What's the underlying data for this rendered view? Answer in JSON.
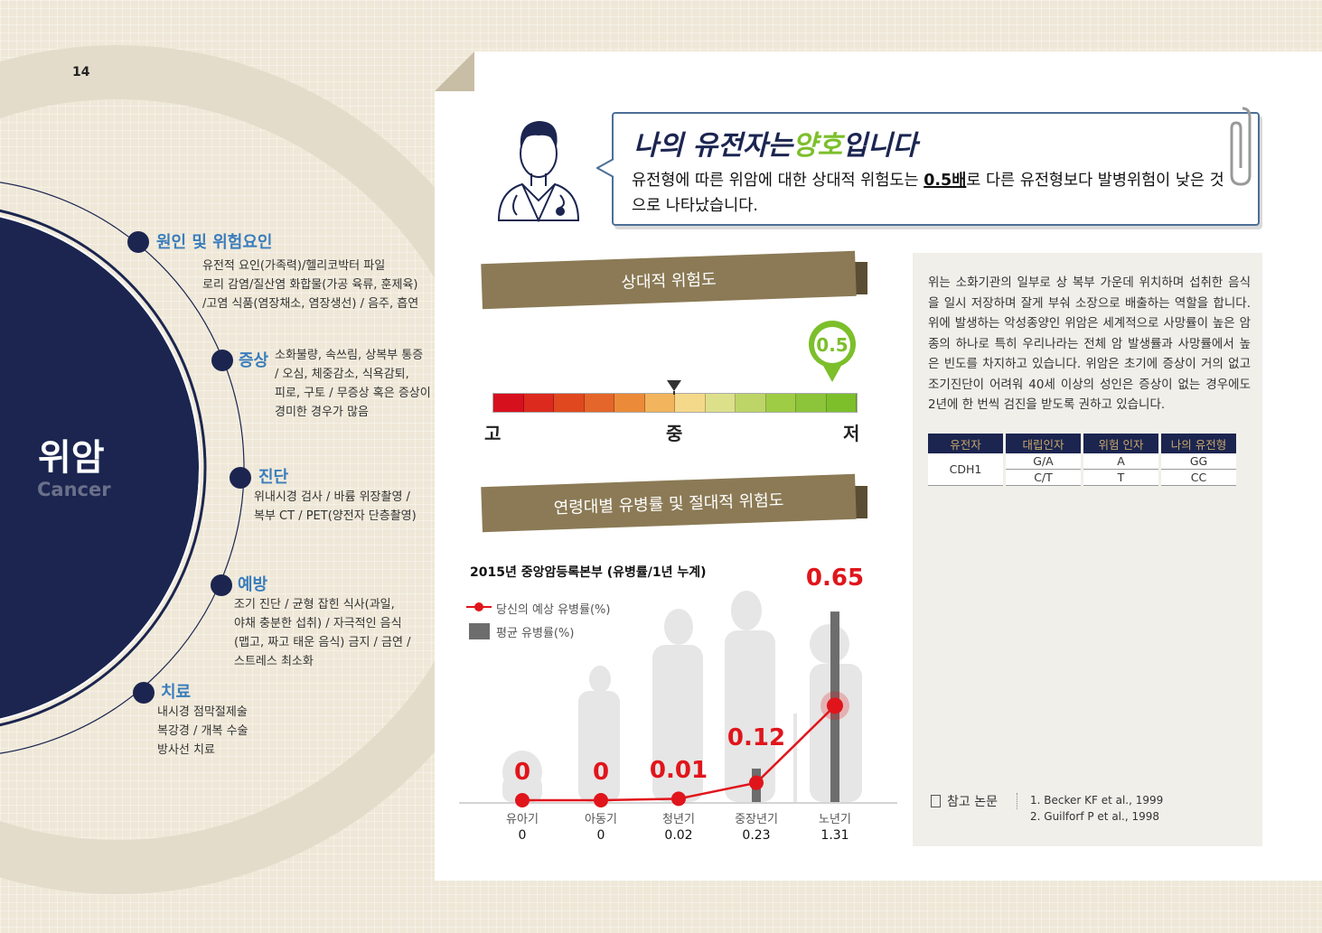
{
  "page_number": "14",
  "left": {
    "title": "위암",
    "subtitle": "Cancer",
    "sections": [
      {
        "title": "원인 및 위험요인",
        "text": "유전적 요인(가족력)/헬리코박터 파일\n로리 감염/질산염 화합물(가공 육류, 훈제육)\n/고염 식품(염장채소, 염장생선) / 음주, 흡연"
      },
      {
        "title": "증상",
        "text": "소화불량, 속쓰림, 상복부 통증\n / 오심, 체중감소, 식욕감퇴,\n피로, 구토 / 무증상 혹은 증상이\n경미한 경우가 많음"
      },
      {
        "title": "진단",
        "text": "위내시경 검사 / 바륨 위장촬영 /\n복부 CT / PET(양전자 단층촬영)"
      },
      {
        "title": "예방",
        "text": "조기 진단 / 균형 잡힌 식사(과일,\n야채 충분한 섭취) / 자극적인 음식\n(맵고, 짜고 태운 음식) 금지 / 금연 /\n스트레스 최소화"
      },
      {
        "title": "치료",
        "text": "내시경 점막절제술\n복강경 / 개복 수술\n방사선 치료"
      }
    ]
  },
  "bubble": {
    "title_a": "나의 유전자는",
    "title_b": "양호",
    "title_c": "입니다",
    "text_a": "유전형에 따른 위암에 대한 상대적 위험도는 ",
    "text_b": "0.5배",
    "text_c": "로 다른 유전형보다 발병위험이 낮은 것으로 나타났습니다."
  },
  "risk": {
    "banner": "상대적 위험도",
    "value": "0.5",
    "labels": [
      "고",
      "중",
      "저"
    ],
    "value_fraction": 0.92,
    "colors": [
      "#d7101e",
      "#dc2a1e",
      "#e0481f",
      "#e4662a",
      "#eb8b3a",
      "#f2b45c",
      "#f5d98a",
      "#dde08a",
      "#bcd566",
      "#9fcc45",
      "#8cc43a",
      "#7cbf2b"
    ]
  },
  "incidence": {
    "banner": "연령대별 유병률 및 절대적 위험도",
    "chart_data": {
      "type": "bar+line",
      "title": "2015년 중앙암등록본부 (유병률/1년 누계)",
      "categories": [
        "유아기",
        "아동기",
        "청년기",
        "중장년기",
        "노년기"
      ],
      "series": [
        {
          "name": "당신의 예상 유병률(%)",
          "type": "line",
          "color": "#e0151b",
          "values": [
            0,
            0,
            0.01,
            0.12,
            0.65
          ]
        },
        {
          "name": "평균 유병률(%)",
          "type": "bar",
          "color": "#6d6d6d",
          "values": [
            0,
            0,
            0.02,
            0.23,
            1.31
          ]
        }
      ],
      "value_labels": [
        "0",
        "0",
        "0.01",
        "0.12",
        "0.65"
      ],
      "bar_labels": [
        "0",
        "0",
        "0.02",
        "0.23",
        "1.31"
      ]
    }
  },
  "description": "위는 소화기관의 일부로 상 복부 가운데 위치하며 섭취한 음식을 일시 저장하며 잘게 부숴 소장으로 배출하는 역할을 합니다. 위에 발생하는 악성종양인 위암은 세계적으로 사망률이 높은 암 종의 하나로 특히 우리나라는 전체 암 발생률과 사망률에서 높은 빈도를 차지하고 있습니다. 위암은 초기에 증상이 거의 없고 조기진단이 어려워 40세 이상의 성인은 증상이 없는 경우에도 2년에 한 번씩 검진을 받도록 권하고 있습니다.",
  "table": {
    "headers": [
      "유전자",
      "대립인자",
      "위험 인자",
      "나의 유전형"
    ],
    "gene": "CDH1",
    "rows": [
      [
        "G/A",
        "A",
        "GG"
      ],
      [
        "C/T",
        "T",
        "CC"
      ]
    ]
  },
  "references": {
    "label": "참고 논문",
    "items": [
      "1. Becker KF et al., 1999",
      "2. Guilforf P et al., 1998"
    ]
  }
}
